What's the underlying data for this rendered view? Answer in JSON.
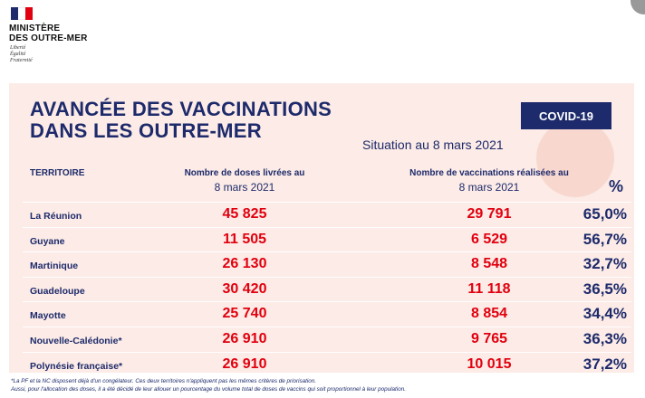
{
  "header": {
    "ministry": [
      "MINISTÈRE",
      "DES OUTRE-MER"
    ],
    "motto": [
      "Liberté",
      "Égalité",
      "Fraternité"
    ]
  },
  "title": [
    "AVANCÉE DES VACCINATIONS",
    "DANS LES OUTRE-MER"
  ],
  "badge": "COVID-19",
  "subtitle": {
    "prefix": "Situation au",
    "date": "8 mars 2021"
  },
  "table": {
    "columns": [
      "TERRITOIRE",
      [
        "Nombre de doses livrées au",
        "8 mars 2021"
      ],
      [
        "Nombre de vaccinations réalisées au",
        "8 mars 2021"
      ],
      "%"
    ],
    "rows": [
      [
        "La Réunion",
        "45 825",
        "29 791",
        "65,0%"
      ],
      [
        "Guyane",
        "11 505",
        "6 529",
        "56,7%"
      ],
      [
        "Martinique",
        "26 130",
        "8 548",
        "32,7%"
      ],
      [
        "Guadeloupe",
        "30 420",
        "11 118",
        "36,5%"
      ],
      [
        "Mayotte",
        "25 740",
        "8 854",
        "34,4%"
      ],
      [
        "Nouvelle-Calédonie*",
        "26 910",
        "9 765",
        "36,3%"
      ],
      [
        "Polynésie française*",
        "26 910",
        "10 015",
        "37,2%"
      ]
    ]
  },
  "footnotes": [
    "*La PF et la NC disposent déjà d'un congélateur. Ces deux territoires n'appliquent pas les mêmes critères de priorisation.",
    "Aussi, pour l'allocation des doses, il a été décidé de leur allouer un pourcentage du volume total de doses de vaccins qui soit proportionnel à leur population."
  ]
}
